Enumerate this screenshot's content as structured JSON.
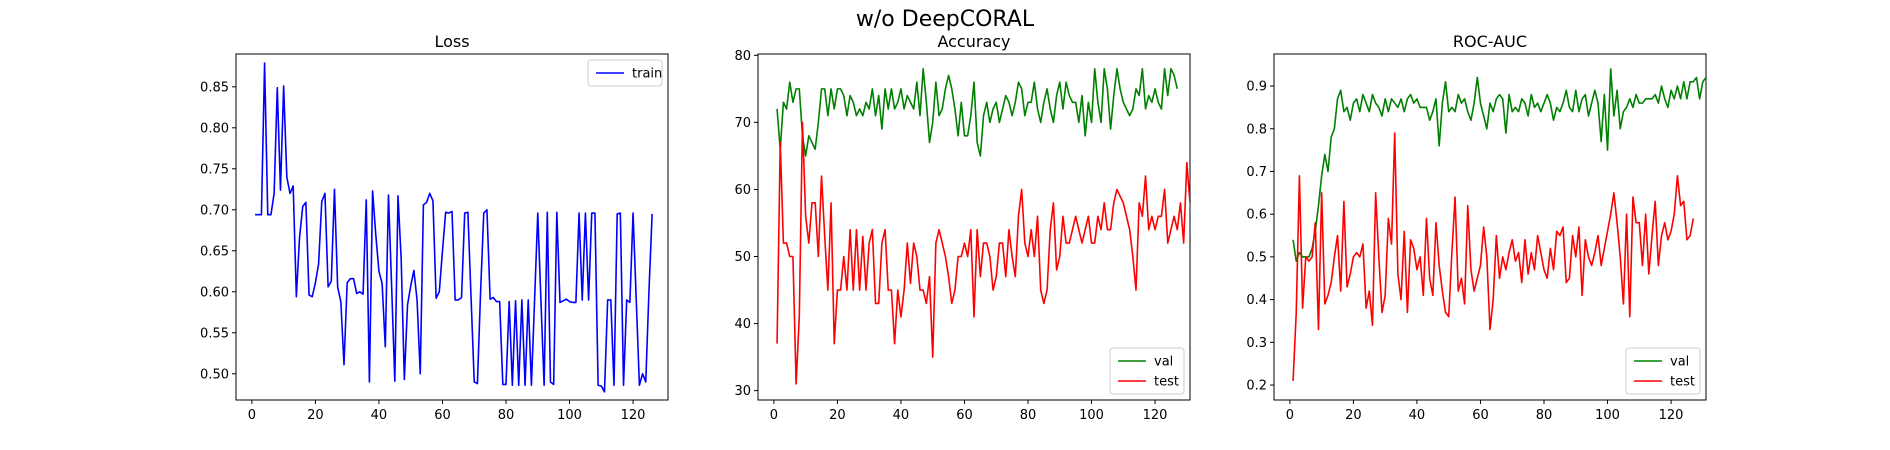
{
  "figure": {
    "suptitle": "w/o DeepCORAL"
  },
  "chart_data": [
    {
      "type": "line",
      "title": "Loss",
      "xlim": [
        -5,
        131
      ],
      "ylim": [
        0.468,
        0.89
      ],
      "xticks": [
        0,
        20,
        40,
        60,
        80,
        100,
        120
      ],
      "yticks": [
        0.5,
        0.55,
        0.6,
        0.65,
        0.7,
        0.75,
        0.8,
        0.85
      ],
      "ytick_labels": [
        "0.50",
        "0.55",
        "0.60",
        "0.65",
        "0.70",
        "0.75",
        "0.80",
        "0.85"
      ],
      "legend": "top-right",
      "series": [
        {
          "name": "train",
          "color": "#0000ff",
          "x_start": 1,
          "values": [
            0.694,
            0.694,
            0.694,
            0.879,
            0.694,
            0.694,
            0.72,
            0.849,
            0.724,
            0.851,
            0.74,
            0.72,
            0.729,
            0.594,
            0.666,
            0.704,
            0.709,
            0.596,
            0.594,
            0.611,
            0.634,
            0.71,
            0.72,
            0.606,
            0.613,
            0.725,
            0.606,
            0.588,
            0.511,
            0.611,
            0.616,
            0.616,
            0.598,
            0.6,
            0.597,
            0.712,
            0.49,
            0.723,
            0.67,
            0.625,
            0.61,
            0.533,
            0.718,
            0.606,
            0.491,
            0.717,
            0.64,
            0.493,
            0.584,
            0.607,
            0.626,
            0.59,
            0.5,
            0.706,
            0.709,
            0.72,
            0.711,
            0.592,
            0.6,
            0.65,
            0.697,
            0.696,
            0.698,
            0.59,
            0.59,
            0.593,
            0.696,
            0.697,
            0.593,
            0.49,
            0.488,
            0.6,
            0.696,
            0.7,
            0.591,
            0.593,
            0.588,
            0.588,
            0.487,
            0.487,
            0.588,
            0.486,
            0.589,
            0.486,
            0.59,
            0.486,
            0.59,
            0.486,
            0.59,
            0.696,
            0.589,
            0.486,
            0.697,
            0.49,
            0.487,
            0.697,
            0.587,
            0.589,
            0.591,
            0.588,
            0.587,
            0.587,
            0.696,
            0.59,
            0.696,
            0.59,
            0.696,
            0.696,
            0.486,
            0.485,
            0.478,
            0.59,
            0.59,
            0.486,
            0.695,
            0.696,
            0.486,
            0.59,
            0.587,
            0.696,
            0.59,
            0.486,
            0.5,
            0.49,
            0.6,
            0.695
          ]
        }
      ]
    },
    {
      "type": "line",
      "title": "Accuracy",
      "xlim": [
        -5,
        131
      ],
      "ylim": [
        28.6,
        80.2
      ],
      "xticks": [
        0,
        20,
        40,
        60,
        80,
        100,
        120
      ],
      "yticks": [
        30,
        40,
        50,
        60,
        70,
        80
      ],
      "ytick_labels": [
        "30",
        "40",
        "50",
        "60",
        "70",
        "80"
      ],
      "legend": "bottom-right",
      "series": [
        {
          "name": "val",
          "color": "#008000",
          "x_start": 1,
          "values": [
            72,
            66,
            73,
            72,
            76,
            73,
            75,
            75,
            68,
            65,
            68,
            67,
            66,
            70,
            75,
            75,
            71,
            75,
            72,
            75,
            75,
            74,
            71,
            74,
            73,
            71,
            72,
            71,
            73,
            72,
            75,
            71,
            74,
            69,
            75,
            72,
            75,
            72,
            73,
            75,
            72,
            74,
            73,
            72,
            76,
            71,
            78,
            73,
            67,
            70,
            76,
            71,
            72,
            75,
            77,
            75,
            72,
            68,
            73,
            68,
            68,
            71,
            76,
            67,
            65,
            71,
            73,
            70,
            72,
            73,
            70,
            72,
            74,
            73,
            71,
            73,
            76,
            75,
            71,
            73,
            73,
            76,
            72,
            70,
            73,
            75,
            72,
            70,
            74,
            76,
            72,
            76,
            74,
            73,
            73,
            70,
            74,
            68,
            73,
            70,
            78,
            73,
            70,
            78,
            75,
            69,
            74,
            78,
            75,
            73,
            72,
            71,
            72,
            75,
            74,
            78,
            72,
            74,
            73,
            75,
            73,
            72,
            78,
            74,
            78,
            77,
            75
          ]
        },
        {
          "name": "test",
          "color": "#ff0000",
          "x_start": 1,
          "values": [
            37,
            67,
            52,
            52,
            50,
            50,
            31,
            41,
            70,
            56,
            52,
            58,
            58,
            50,
            62,
            53,
            45,
            58,
            37,
            45,
            45,
            50,
            45,
            54,
            45,
            54,
            45,
            53,
            45,
            52,
            54,
            43,
            43,
            52,
            54,
            45,
            45,
            37,
            45,
            41,
            45,
            52,
            46,
            52,
            50,
            45,
            45,
            43,
            47,
            35,
            52,
            54,
            52,
            50,
            47,
            43,
            45,
            50,
            50,
            52,
            50,
            54,
            41,
            54,
            47,
            52,
            52,
            50,
            45,
            47,
            52,
            52,
            47,
            54,
            50,
            47,
            56,
            60,
            52,
            50,
            54,
            50,
            56,
            45,
            43,
            45,
            54,
            58,
            48,
            50,
            56,
            52,
            52,
            54,
            56,
            54,
            52,
            54,
            56,
            52,
            52,
            56,
            54,
            58,
            54,
            54,
            58,
            60,
            59,
            58,
            56,
            54,
            50,
            45,
            58,
            56,
            62,
            54,
            56,
            54,
            56,
            56,
            60,
            52,
            54,
            56,
            54,
            58,
            52,
            64,
            58,
            56
          ]
        }
      ]
    },
    {
      "type": "line",
      "title": "ROC-AUC",
      "xlim": [
        -5,
        131
      ],
      "ylim": [
        0.165,
        0.975
      ],
      "xticks": [
        0,
        20,
        40,
        60,
        80,
        100,
        120
      ],
      "yticks": [
        0.2,
        0.3,
        0.4,
        0.5,
        0.6,
        0.7,
        0.8,
        0.9
      ],
      "ytick_labels": [
        "0.2",
        "0.3",
        "0.4",
        "0.5",
        "0.6",
        "0.7",
        "0.8",
        "0.9"
      ],
      "legend": "bottom-right",
      "series": [
        {
          "name": "val",
          "color": "#008000",
          "x_start": 1,
          "values": [
            0.54,
            0.49,
            0.51,
            0.5,
            0.5,
            0.5,
            0.52,
            0.56,
            0.62,
            0.69,
            0.74,
            0.7,
            0.78,
            0.8,
            0.87,
            0.89,
            0.84,
            0.85,
            0.82,
            0.86,
            0.87,
            0.84,
            0.88,
            0.86,
            0.84,
            0.88,
            0.86,
            0.85,
            0.83,
            0.87,
            0.84,
            0.87,
            0.86,
            0.85,
            0.87,
            0.84,
            0.87,
            0.88,
            0.86,
            0.87,
            0.85,
            0.85,
            0.85,
            0.82,
            0.84,
            0.87,
            0.76,
            0.86,
            0.91,
            0.84,
            0.85,
            0.84,
            0.88,
            0.86,
            0.87,
            0.84,
            0.82,
            0.86,
            0.92,
            0.86,
            0.83,
            0.8,
            0.86,
            0.84,
            0.87,
            0.88,
            0.87,
            0.79,
            0.88,
            0.84,
            0.85,
            0.84,
            0.87,
            0.86,
            0.83,
            0.88,
            0.85,
            0.86,
            0.84,
            0.86,
            0.88,
            0.86,
            0.82,
            0.85,
            0.84,
            0.86,
            0.89,
            0.85,
            0.84,
            0.89,
            0.84,
            0.87,
            0.88,
            0.83,
            0.86,
            0.89,
            0.86,
            0.77,
            0.88,
            0.75,
            0.94,
            0.83,
            0.89,
            0.8,
            0.84,
            0.85,
            0.87,
            0.85,
            0.88,
            0.86,
            0.86,
            0.87,
            0.87,
            0.87,
            0.88,
            0.86,
            0.9,
            0.87,
            0.85,
            0.89,
            0.87,
            0.9,
            0.87,
            0.91,
            0.87,
            0.91,
            0.91,
            0.92,
            0.87,
            0.91,
            0.92,
            0.88
          ]
        },
        {
          "name": "test",
          "color": "#ff0000",
          "x_start": 1,
          "values": [
            0.21,
            0.37,
            0.69,
            0.38,
            0.5,
            0.49,
            0.5,
            0.58,
            0.33,
            0.65,
            0.39,
            0.41,
            0.44,
            0.5,
            0.55,
            0.42,
            0.63,
            0.43,
            0.46,
            0.5,
            0.51,
            0.5,
            0.53,
            0.38,
            0.42,
            0.34,
            0.65,
            0.5,
            0.37,
            0.41,
            0.59,
            0.53,
            0.79,
            0.46,
            0.4,
            0.56,
            0.37,
            0.54,
            0.52,
            0.47,
            0.5,
            0.41,
            0.59,
            0.45,
            0.41,
            0.58,
            0.48,
            0.42,
            0.37,
            0.36,
            0.51,
            0.64,
            0.42,
            0.45,
            0.39,
            0.62,
            0.47,
            0.42,
            0.45,
            0.48,
            0.57,
            0.5,
            0.33,
            0.4,
            0.55,
            0.45,
            0.5,
            0.47,
            0.51,
            0.54,
            0.49,
            0.51,
            0.44,
            0.54,
            0.46,
            0.51,
            0.47,
            0.55,
            0.51,
            0.47,
            0.45,
            0.52,
            0.47,
            0.56,
            0.55,
            0.57,
            0.44,
            0.45,
            0.55,
            0.5,
            0.57,
            0.41,
            0.54,
            0.5,
            0.48,
            0.51,
            0.55,
            0.48,
            0.52,
            0.56,
            0.6,
            0.65,
            0.58,
            0.5,
            0.39,
            0.6,
            0.36,
            0.64,
            0.58,
            0.58,
            0.48,
            0.6,
            0.46,
            0.55,
            0.63,
            0.48,
            0.55,
            0.58,
            0.54,
            0.56,
            0.6,
            0.69,
            0.62,
            0.63,
            0.54,
            0.55,
            0.59
          ]
        }
      ]
    }
  ]
}
